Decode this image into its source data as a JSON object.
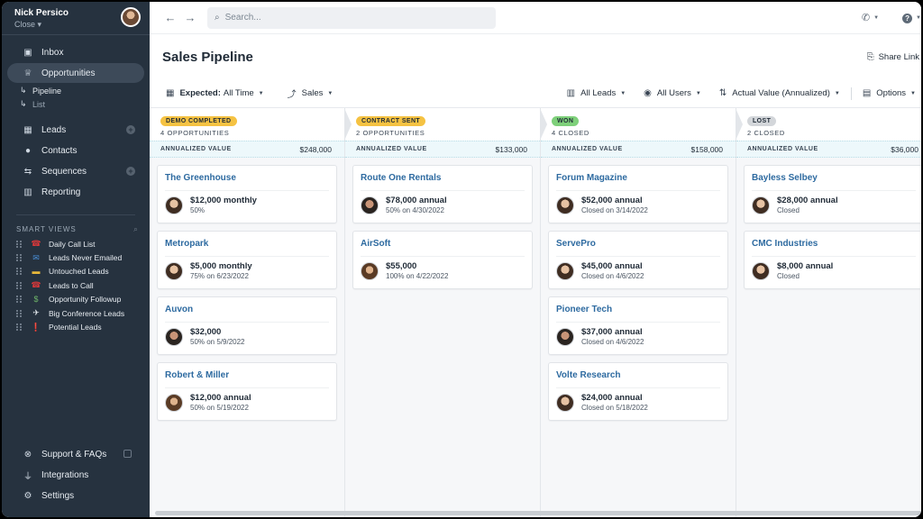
{
  "user": {
    "name": "Nick Persico",
    "org": "Close ▾"
  },
  "sidebar": {
    "nav": [
      {
        "label": "Inbox",
        "icon": "inbox-icon",
        "glyph": "▣",
        "active": false,
        "plus": false
      },
      {
        "label": "Opportunities",
        "icon": "trophy-icon",
        "glyph": "♕",
        "active": true,
        "plus": false
      }
    ],
    "sub": [
      {
        "label": "Pipeline",
        "glyph": "↳"
      },
      {
        "label": "List",
        "glyph": "↳"
      }
    ],
    "nav2": [
      {
        "label": "Leads",
        "icon": "building-icon",
        "glyph": "▦",
        "plus": true
      },
      {
        "label": "Contacts",
        "icon": "person-icon",
        "glyph": "●",
        "plus": false
      },
      {
        "label": "Sequences",
        "icon": "sequences-icon",
        "glyph": "⇆",
        "plus": true
      },
      {
        "label": "Reporting",
        "icon": "chart-icon",
        "glyph": "▥",
        "plus": false
      }
    ],
    "smart_views_label": "SMART VIEWS",
    "smart_views": [
      {
        "label": "Daily Call List",
        "emoji": "☎",
        "color": "#d9383a"
      },
      {
        "label": "Leads Never Emailed",
        "emoji": "✉",
        "color": "#4a90d9"
      },
      {
        "label": "Untouched Leads",
        "emoji": "▬",
        "color": "#e8b83a"
      },
      {
        "label": "Leads to Call",
        "emoji": "☎",
        "color": "#d9383a"
      },
      {
        "label": "Opportunity Followup",
        "emoji": "$",
        "color": "#6fb56a"
      },
      {
        "label": "Big Conference Leads",
        "emoji": "✈",
        "color": "#dfe5ea"
      },
      {
        "label": "Potential Leads",
        "emoji": "❗",
        "color": "#d9383a"
      }
    ],
    "bottom": [
      {
        "label": "Support & FAQs",
        "icon": "support-icon",
        "glyph": "⊗"
      },
      {
        "label": "Integrations",
        "icon": "plug-icon",
        "glyph": "⏚"
      },
      {
        "label": "Settings",
        "icon": "gear-icon",
        "glyph": "⚙"
      }
    ]
  },
  "search": {
    "placeholder": "Search..."
  },
  "page": {
    "title": "Sales Pipeline",
    "share_label": "Share Link"
  },
  "filters": {
    "expected_label": "Expected:",
    "expected_value": "All Time",
    "pipeline": "Sales",
    "leads": "All Leads",
    "users": "All Users",
    "sort": "Actual Value (Annualized)",
    "options": "Options"
  },
  "annualized_label": "ANNUALIZED VALUE",
  "columns": [
    {
      "stage": "DEMO COMPLETED",
      "stage_color": "#f5c242",
      "count": "4 OPPORTUNITIES",
      "total": "$248,000",
      "cards": [
        {
          "name": "The Greenhouse",
          "value": "$12,000 monthly",
          "detail": "50%",
          "avatar": "a1"
        },
        {
          "name": "Metropark",
          "value": "$5,000 monthly",
          "detail": "75% on 6/23/2022",
          "avatar": "a1"
        },
        {
          "name": "Auvon",
          "value": "$32,000",
          "detail": "50% on 5/9/2022",
          "avatar": "a2"
        },
        {
          "name": "Robert & Miller",
          "value": "$12,000 annual",
          "detail": "50% on 5/19/2022",
          "avatar": "a3"
        }
      ]
    },
    {
      "stage": "CONTRACT SENT",
      "stage_color": "#f5c242",
      "count": "2 OPPORTUNITIES",
      "total": "$133,000",
      "cards": [
        {
          "name": "Route One Rentals",
          "value": "$78,000 annual",
          "detail": "50% on 4/30/2022",
          "avatar": "a2"
        },
        {
          "name": "AirSoft",
          "value": "$55,000",
          "detail": "100% on 4/22/2022",
          "avatar": "a3"
        }
      ]
    },
    {
      "stage": "WON",
      "stage_color": "#7ed07a",
      "count": "4 CLOSED",
      "total": "$158,000",
      "cards": [
        {
          "name": "Forum Magazine",
          "value": "$52,000 annual",
          "detail": "Closed on 3/14/2022",
          "avatar": "a1"
        },
        {
          "name": "ServePro",
          "value": "$45,000 annual",
          "detail": "Closed on 4/6/2022",
          "avatar": "a1"
        },
        {
          "name": "Pioneer Tech",
          "value": "$37,000 annual",
          "detail": "Closed on 4/6/2022",
          "avatar": "a2"
        },
        {
          "name": "Volte Research",
          "value": "$24,000 annual",
          "detail": "Closed on 5/18/2022",
          "avatar": "a1"
        }
      ]
    },
    {
      "stage": "LOST",
      "stage_color": "#d3d6da",
      "count": "2 CLOSED",
      "total": "$36,000",
      "cards": [
        {
          "name": "Bayless Selbey",
          "value": "$28,000 annual",
          "detail": "Closed",
          "avatar": "a1"
        },
        {
          "name": "CMC Industries",
          "value": "$8,000 annual",
          "detail": "Closed",
          "avatar": "a1"
        }
      ]
    }
  ]
}
